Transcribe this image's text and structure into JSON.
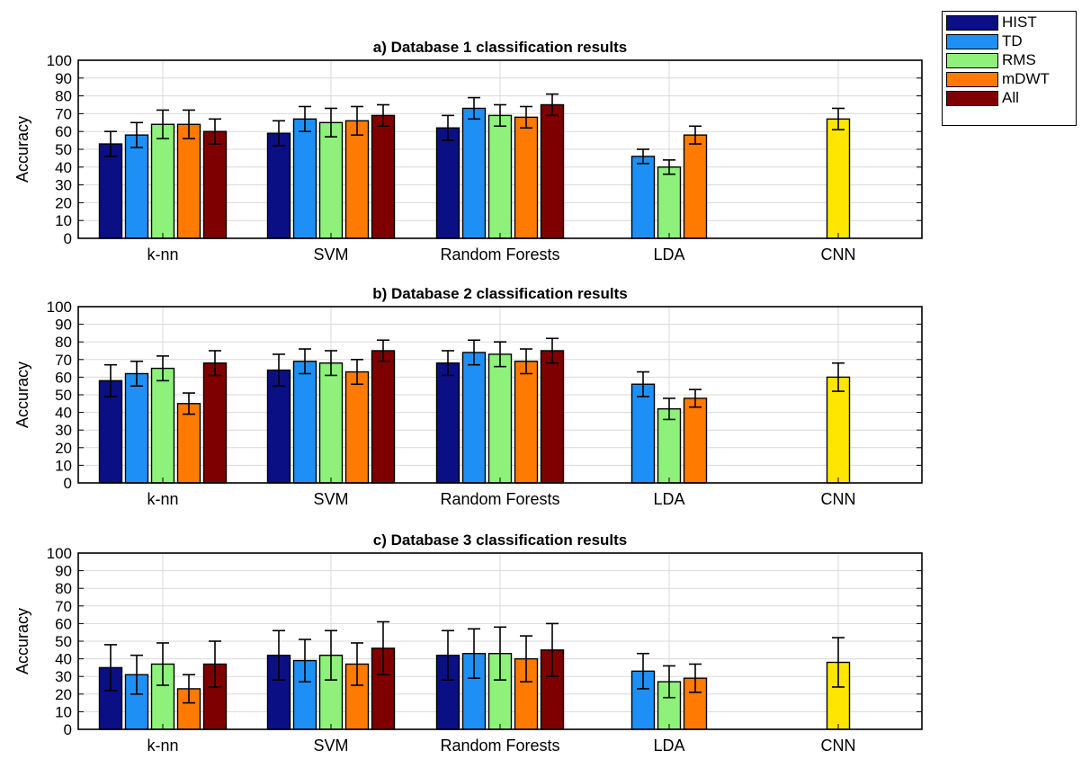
{
  "legend": {
    "items": [
      {
        "label": "HIST",
        "color": "#0a0f84"
      },
      {
        "label": "TD",
        "color": "#1e90f5"
      },
      {
        "label": "RMS",
        "color": "#8ef27a"
      },
      {
        "label": "mDWT",
        "color": "#ff7a00"
      },
      {
        "label": "All",
        "color": "#7e0000"
      }
    ]
  },
  "chart_data": [
    {
      "type": "bar",
      "title": "a) Database 1 classification results",
      "ylabel": "Accuracy",
      "ylim": [
        0,
        100
      ],
      "yticks": [
        0,
        10,
        20,
        30,
        40,
        50,
        60,
        70,
        80,
        90,
        100
      ],
      "categories": [
        "k-nn",
        "SVM",
        "Random Forests",
        "LDA",
        "CNN"
      ],
      "grid": true,
      "series": [
        {
          "name": "HIST",
          "color": "#0a0f84",
          "values": [
            53,
            59,
            62,
            null,
            null
          ],
          "errors": [
            7,
            7,
            7,
            null,
            null
          ]
        },
        {
          "name": "TD",
          "color": "#1e90f5",
          "values": [
            58,
            67,
            73,
            46,
            null
          ],
          "errors": [
            7,
            7,
            6,
            4,
            null
          ]
        },
        {
          "name": "RMS",
          "color": "#8ef27a",
          "values": [
            64,
            65,
            69,
            40,
            null
          ],
          "errors": [
            8,
            8,
            6,
            4,
            null
          ]
        },
        {
          "name": "mDWT",
          "color": "#ff7a00",
          "values": [
            64,
            66,
            68,
            58,
            null
          ],
          "errors": [
            8,
            8,
            6,
            5,
            null
          ]
        },
        {
          "name": "All",
          "color": "#7e0000",
          "values": [
            60,
            69,
            75,
            null,
            null
          ],
          "errors": [
            7,
            6,
            6,
            null,
            null
          ]
        },
        {
          "name": "CNN",
          "color": "#ffe600",
          "values": [
            null,
            null,
            null,
            null,
            67
          ],
          "errors": [
            null,
            null,
            null,
            null,
            6
          ]
        }
      ]
    },
    {
      "type": "bar",
      "title": "b) Database 2 classification results",
      "ylabel": "Accuracy",
      "ylim": [
        0,
        100
      ],
      "yticks": [
        0,
        10,
        20,
        30,
        40,
        50,
        60,
        70,
        80,
        90,
        100
      ],
      "categories": [
        "k-nn",
        "SVM",
        "Random Forests",
        "LDA",
        "CNN"
      ],
      "grid": true,
      "series": [
        {
          "name": "HIST",
          "color": "#0a0f84",
          "values": [
            58,
            64,
            68,
            null,
            null
          ],
          "errors": [
            9,
            9,
            7,
            null,
            null
          ]
        },
        {
          "name": "TD",
          "color": "#1e90f5",
          "values": [
            62,
            69,
            74,
            56,
            null
          ],
          "errors": [
            7,
            7,
            7,
            7,
            null
          ]
        },
        {
          "name": "RMS",
          "color": "#8ef27a",
          "values": [
            65,
            68,
            73,
            42,
            null
          ],
          "errors": [
            7,
            7,
            7,
            6,
            null
          ]
        },
        {
          "name": "mDWT",
          "color": "#ff7a00",
          "values": [
            45,
            63,
            69,
            48,
            null
          ],
          "errors": [
            6,
            7,
            7,
            5,
            null
          ]
        },
        {
          "name": "All",
          "color": "#7e0000",
          "values": [
            68,
            75,
            75,
            null,
            null
          ],
          "errors": [
            7,
            6,
            7,
            null,
            null
          ]
        },
        {
          "name": "CNN",
          "color": "#ffe600",
          "values": [
            null,
            null,
            null,
            null,
            60
          ],
          "errors": [
            null,
            null,
            null,
            null,
            8
          ]
        }
      ]
    },
    {
      "type": "bar",
      "title": "c) Database 3 classification results",
      "ylabel": "Accuracy",
      "ylim": [
        0,
        100
      ],
      "yticks": [
        0,
        10,
        20,
        30,
        40,
        50,
        60,
        70,
        80,
        90,
        100
      ],
      "categories": [
        "k-nn",
        "SVM",
        "Random Forests",
        "LDA",
        "CNN"
      ],
      "grid": true,
      "series": [
        {
          "name": "HIST",
          "color": "#0a0f84",
          "values": [
            35,
            42,
            42,
            null,
            null
          ],
          "errors": [
            13,
            14,
            14,
            null,
            null
          ]
        },
        {
          "name": "TD",
          "color": "#1e90f5",
          "values": [
            31,
            39,
            43,
            33,
            null
          ],
          "errors": [
            11,
            12,
            14,
            10,
            null
          ]
        },
        {
          "name": "RMS",
          "color": "#8ef27a",
          "values": [
            37,
            42,
            43,
            27,
            null
          ],
          "errors": [
            12,
            14,
            15,
            9,
            null
          ]
        },
        {
          "name": "mDWT",
          "color": "#ff7a00",
          "values": [
            23,
            37,
            40,
            29,
            null
          ],
          "errors": [
            8,
            12,
            13,
            8,
            null
          ]
        },
        {
          "name": "All",
          "color": "#7e0000",
          "values": [
            37,
            46,
            45,
            null,
            null
          ],
          "errors": [
            13,
            15,
            15,
            null,
            null
          ]
        },
        {
          "name": "CNN",
          "color": "#ffe600",
          "values": [
            null,
            null,
            null,
            null,
            38
          ],
          "errors": [
            null,
            null,
            null,
            null,
            14
          ]
        }
      ]
    }
  ]
}
